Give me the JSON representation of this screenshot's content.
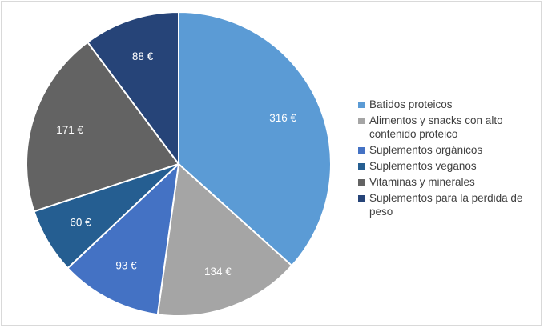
{
  "chart_data": {
    "type": "pie",
    "title": "",
    "slices": [
      {
        "label": "Batidos proteicos",
        "value": 316,
        "value_label": "316 €",
        "color": "#5b9bd5"
      },
      {
        "label": "Alimentos y snacks con alto contenido proteico",
        "value": 134,
        "value_label": "134 €",
        "color": "#a5a5a5"
      },
      {
        "label": "Suplementos orgánicos",
        "value": 93,
        "value_label": "93 €",
        "color": "#4472c4"
      },
      {
        "label": "Suplementos veganos",
        "value": 60,
        "value_label": "60 €",
        "color": "#255e91"
      },
      {
        "label": "Vitaminas y minerales",
        "value": 171,
        "value_label": "171 €",
        "color": "#636363"
      },
      {
        "label": "Suplementos para la perdida de peso",
        "value": 88,
        "value_label": "88 €",
        "color": "#264478"
      }
    ],
    "legend_position": "right"
  }
}
